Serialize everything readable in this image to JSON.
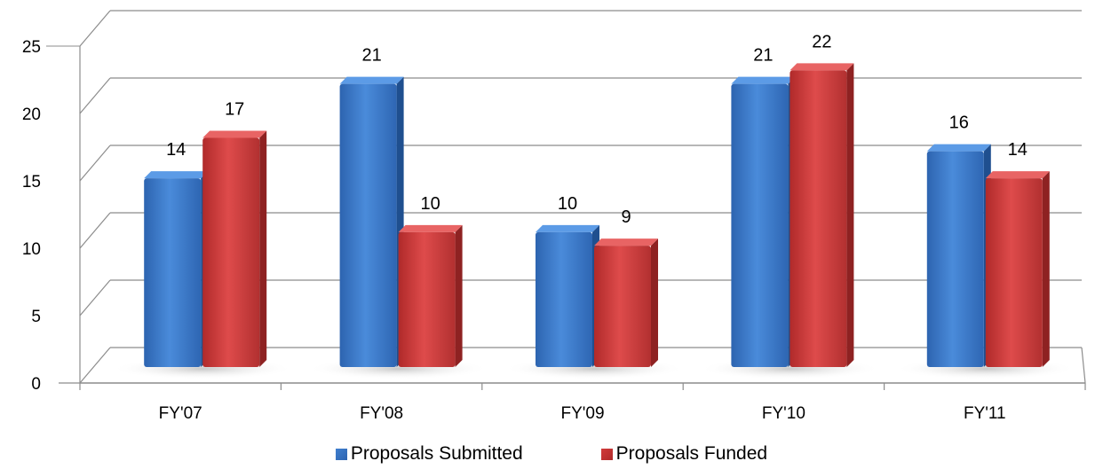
{
  "chart_data": {
    "type": "bar",
    "title": "",
    "xlabel": "",
    "ylabel": "",
    "categories": [
      "FY'07",
      "FY'08",
      "FY'09",
      "FY'10",
      "FY'11"
    ],
    "ylim": [
      0,
      25
    ],
    "yticks": [
      0,
      5,
      10,
      15,
      20,
      25
    ],
    "grid": true,
    "legend_position": "bottom",
    "style": "3d-clustered-column",
    "series": [
      {
        "name": "Proposals Submitted",
        "values": [
          14,
          21,
          10,
          21,
          16
        ],
        "color": "#3F7FCF"
      },
      {
        "name": "Proposals Funded",
        "values": [
          17,
          10,
          9,
          22,
          14
        ],
        "color": "#D13B3B"
      }
    ]
  }
}
